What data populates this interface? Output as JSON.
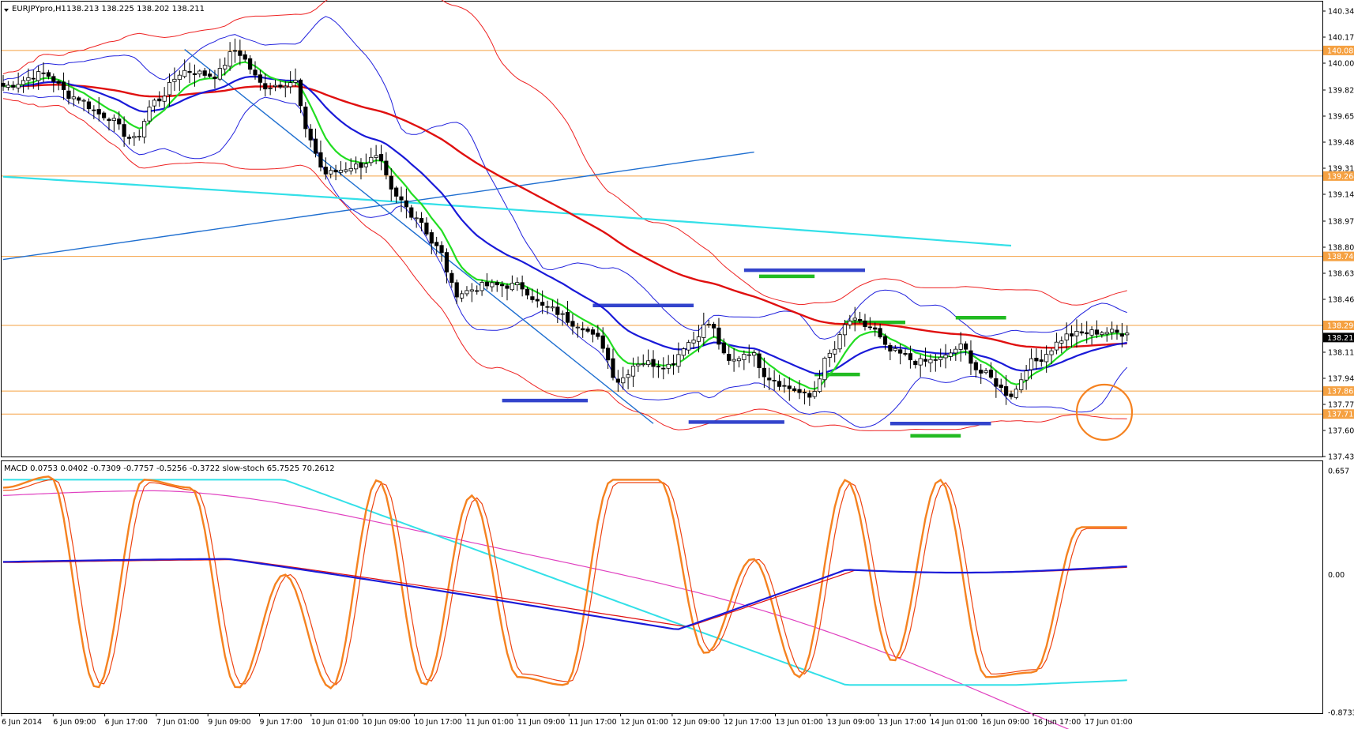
{
  "chart_data": [
    {
      "type": "candlestick",
      "panel": "main",
      "header": {
        "symbol_label": "EURJPYpro,H1",
        "ohlc_text": "138.213 138.225 138.202 138.211"
      },
      "ylim": [
        137.435,
        140.34
      ],
      "price_labels": [
        "140.340",
        "140.170",
        "140.000",
        "139.825",
        "139.655",
        "139.485",
        "139.315",
        "139.145",
        "138.970",
        "138.800",
        "138.630",
        "138.460",
        "138.290",
        "138.115",
        "137.945",
        "137.775",
        "137.605",
        "137.435"
      ],
      "current_price": "138.211",
      "horizontal_levels": [
        {
          "label": "140.083",
          "value": 140.083,
          "color": "#f5a142"
        },
        {
          "label": "139.264",
          "value": 139.264,
          "color": "#f5a142"
        },
        {
          "label": "138.740",
          "value": 138.74,
          "color": "#f5a142"
        },
        {
          "label": "138.290",
          "value": 138.29,
          "color": "#f5a142"
        },
        {
          "label": "137.862",
          "value": 137.862,
          "color": "#f5a142"
        },
        {
          "label": "137.712",
          "value": 137.712,
          "color": "#f5a142"
        }
      ],
      "candle_anchors": [
        [
          0,
          139.85
        ],
        [
          8,
          139.93
        ],
        [
          14,
          139.78
        ],
        [
          20,
          139.66
        ],
        [
          26,
          139.5
        ],
        [
          30,
          139.75
        ],
        [
          36,
          139.95
        ],
        [
          42,
          139.92
        ],
        [
          46,
          140.08
        ],
        [
          52,
          139.85
        ],
        [
          58,
          139.88
        ],
        [
          60,
          139.55
        ],
        [
          64,
          139.28
        ],
        [
          70,
          139.33
        ],
        [
          74,
          139.38
        ],
        [
          78,
          139.12
        ],
        [
          82,
          139.0
        ],
        [
          86,
          138.8
        ],
        [
          90,
          138.5
        ],
        [
          96,
          138.55
        ],
        [
          102,
          138.55
        ],
        [
          108,
          138.4
        ],
        [
          114,
          138.3
        ],
        [
          118,
          138.2
        ],
        [
          122,
          137.93
        ],
        [
          126,
          138.05
        ],
        [
          132,
          138.03
        ],
        [
          136,
          138.18
        ],
        [
          140,
          138.3
        ],
        [
          144,
          138.05
        ],
        [
          148,
          138.12
        ],
        [
          152,
          137.95
        ],
        [
          156,
          137.88
        ],
        [
          160,
          137.82
        ],
        [
          164,
          138.1
        ],
        [
          168,
          138.32
        ],
        [
          172,
          138.28
        ],
        [
          176,
          138.12
        ],
        [
          182,
          138.05
        ],
        [
          186,
          138.07
        ],
        [
          190,
          138.15
        ],
        [
          194,
          137.98
        ],
        [
          200,
          137.84
        ],
        [
          204,
          138.05
        ],
        [
          212,
          138.23
        ],
        [
          218,
          138.25
        ],
        [
          222,
          138.24
        ]
      ],
      "sessions": [
        "6 Jun 2014",
        "6 Jun 09:00",
        "6 Jun 17:00",
        "7 Jun 01:00",
        "9 Jun 09:00",
        "9 Jun 17:00",
        "10 Jun 01:00",
        "10 Jun 09:00",
        "10 Jun 17:00",
        "11 Jun 01:00",
        "11 Jun 09:00",
        "11 Jun 17:00",
        "12 Jun 01:00",
        "12 Jun 09:00",
        "12 Jun 17:00",
        "13 Jun 01:00",
        "13 Jun 09:00",
        "13 Jun 17:00",
        "14 Jun 01:00",
        "16 Jun 09:00",
        "16 Jun 17:00",
        "17 Jun 01:00"
      ],
      "indicators": [
        {
          "name": "fast MA",
          "color": "#22dd22"
        },
        {
          "name": "mid MA",
          "color": "#1a1ad8"
        },
        {
          "name": "slow MA",
          "color": "#e01010"
        },
        {
          "name": "long MA",
          "color": "#33e0e8"
        },
        {
          "name": "Bollinger bands (inner)",
          "color": "#2222dd"
        },
        {
          "name": "Bollinger bands (outer)",
          "color": "#ee2222"
        }
      ],
      "colors": {
        "bull": "#ffffff",
        "bear": "#000000",
        "trendline": "#1f6fd0"
      }
    },
    {
      "type": "line",
      "panel": "oscillator",
      "header_text": "MACD 0.0753 0.0402 -0.7309 -0.7757 -0.5256 -0.3722  slow-stoch 65.7525 70.2612",
      "ylim": [
        -0.8733,
        0.657
      ],
      "y_labels": [
        "0.657",
        "0.00",
        "-0.8733"
      ],
      "series": [
        {
          "name": "MACD",
          "color": "#1a1ad8"
        },
        {
          "name": "signal",
          "color": "#e01010"
        },
        {
          "name": "slow-stoch",
          "color": "#f58220"
        },
        {
          "name": "slow-stoch signal",
          "color": "#ee4411"
        },
        {
          "name": "long average",
          "color": "#33e0e8"
        },
        {
          "name": "long signal",
          "color": "#e040c0"
        }
      ]
    }
  ]
}
